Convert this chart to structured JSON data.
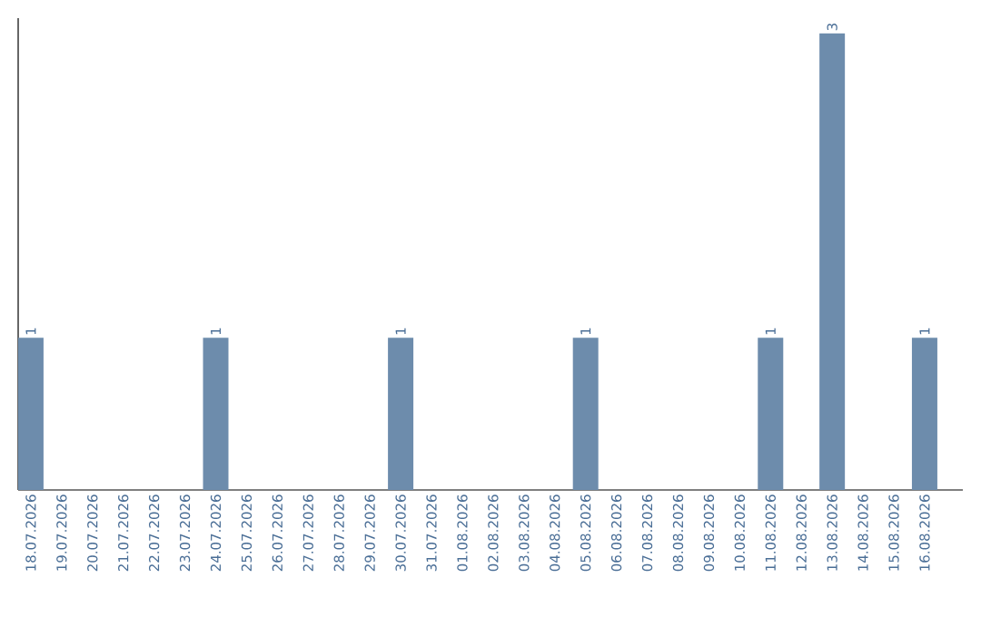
{
  "chart_data": {
    "type": "bar",
    "color": "#6d8cac",
    "categories": [
      "18.07.2026",
      "19.07.2026",
      "20.07.2026",
      "21.07.2026",
      "22.07.2026",
      "23.07.2026",
      "24.07.2026",
      "25.07.2026",
      "26.07.2026",
      "27.07.2026",
      "28.07.2026",
      "29.07.2026",
      "30.07.2026",
      "31.07.2026",
      "01.08.2026",
      "02.08.2026",
      "03.08.2026",
      "04.08.2026",
      "05.08.2026",
      "06.08.2026",
      "07.08.2026",
      "08.08.2026",
      "09.08.2026",
      "10.08.2026",
      "11.08.2026",
      "12.08.2026",
      "13.08.2026",
      "14.08.2026",
      "15.08.2026",
      "16.08.2026"
    ],
    "values": [
      1,
      0,
      0,
      0,
      0,
      0,
      1,
      0,
      0,
      0,
      0,
      0,
      1,
      0,
      0,
      0,
      0,
      0,
      1,
      0,
      0,
      0,
      0,
      0,
      1,
      0,
      3,
      0,
      0,
      1
    ],
    "value_labels": [
      "1",
      null,
      null,
      null,
      null,
      null,
      "1",
      null,
      null,
      null,
      null,
      null,
      "1",
      null,
      null,
      null,
      null,
      null,
      "1",
      null,
      null,
      null,
      null,
      null,
      "1",
      null,
      "3",
      null,
      null,
      "1"
    ],
    "ylim": [
      0,
      3.1
    ],
    "tick_labels": "x"
  }
}
